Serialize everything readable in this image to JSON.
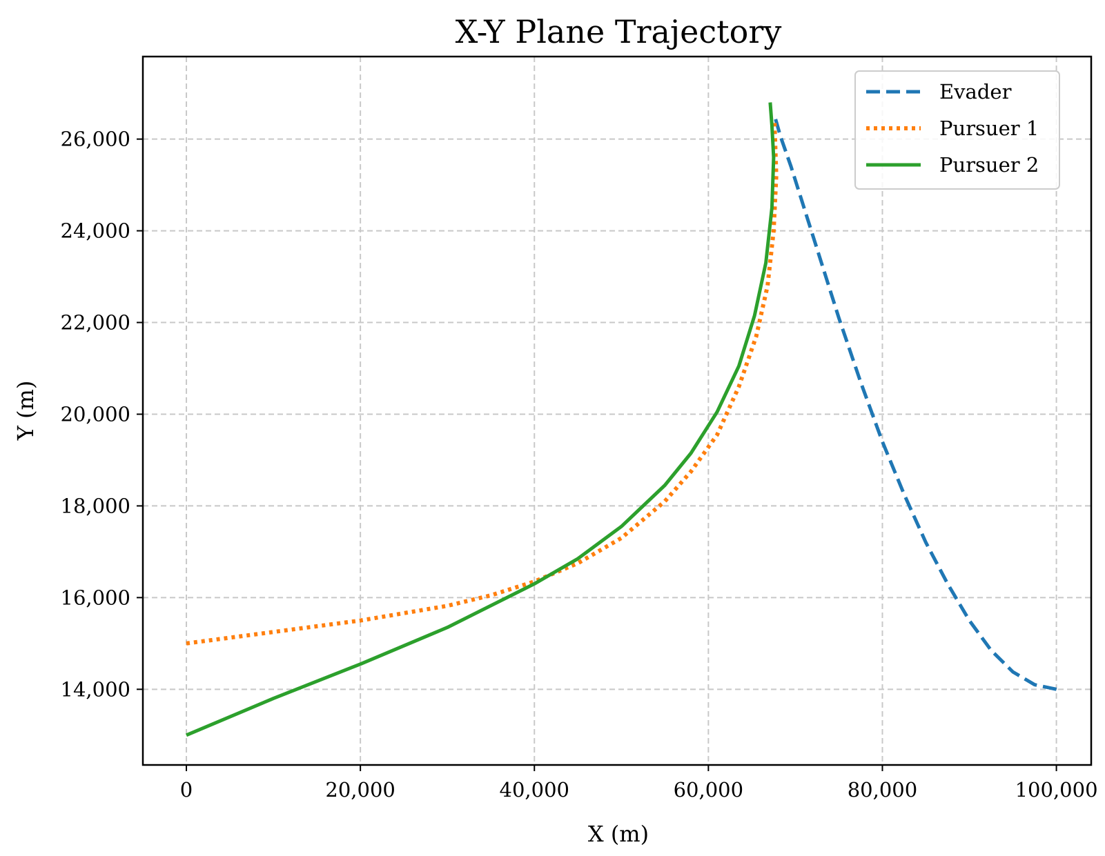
{
  "chart_data": {
    "type": "line",
    "title": "X-Y Plane Trajectory",
    "xlabel": "X (m)",
    "ylabel": "Y (m)",
    "xlim": [
      -5000,
      104000
    ],
    "ylim": [
      12350,
      27800
    ],
    "xticks": [
      0,
      20000,
      40000,
      60000,
      80000,
      100000
    ],
    "yticks": [
      14000,
      16000,
      18000,
      20000,
      22000,
      24000,
      26000
    ],
    "xtick_labels": [
      "0",
      "20,000",
      "40,000",
      "60,000",
      "80,000",
      "100,000"
    ],
    "ytick_labels": [
      "14,000",
      "16,000",
      "18,000",
      "20,000",
      "22,000",
      "24,000",
      "26,000"
    ],
    "grid": true,
    "legend_position": "top-right",
    "series": [
      {
        "name": "Evader",
        "color": "#1f77b4",
        "style": "dashed",
        "x": [
          100000,
          97500,
          95000,
          92500,
          90000,
          87500,
          85000,
          82500,
          80000,
          77500,
          75000,
          73000,
          71000,
          69500,
          68300,
          67700
        ],
        "y": [
          14000,
          14100,
          14380,
          14850,
          15500,
          16300,
          17200,
          18250,
          19400,
          20700,
          22100,
          23300,
          24500,
          25400,
          26050,
          26450
        ]
      },
      {
        "name": "Pursuer 1",
        "color": "#ff7f0e",
        "style": "dotted",
        "x": [
          0,
          10000,
          20000,
          30000,
          35000,
          40000,
          45000,
          50000,
          55000,
          58000,
          61000,
          63500,
          65500,
          66800,
          67500,
          67800,
          67600
        ],
        "y": [
          15000,
          15250,
          15500,
          15820,
          16050,
          16350,
          16750,
          17300,
          18100,
          18750,
          19550,
          20600,
          21700,
          22800,
          24000,
          25200,
          26350
        ]
      },
      {
        "name": "Pursuer 2",
        "color": "#2ca02c",
        "style": "solid",
        "x": [
          0,
          10000,
          20000,
          30000,
          40000,
          45000,
          50000,
          55000,
          58000,
          61000,
          63500,
          65300,
          66600,
          67300,
          67500,
          67300,
          67100
        ],
        "y": [
          13000,
          13800,
          14550,
          15350,
          16300,
          16850,
          17550,
          18450,
          19150,
          20050,
          21050,
          22150,
          23300,
          24500,
          25600,
          26300,
          26800
        ]
      }
    ]
  }
}
